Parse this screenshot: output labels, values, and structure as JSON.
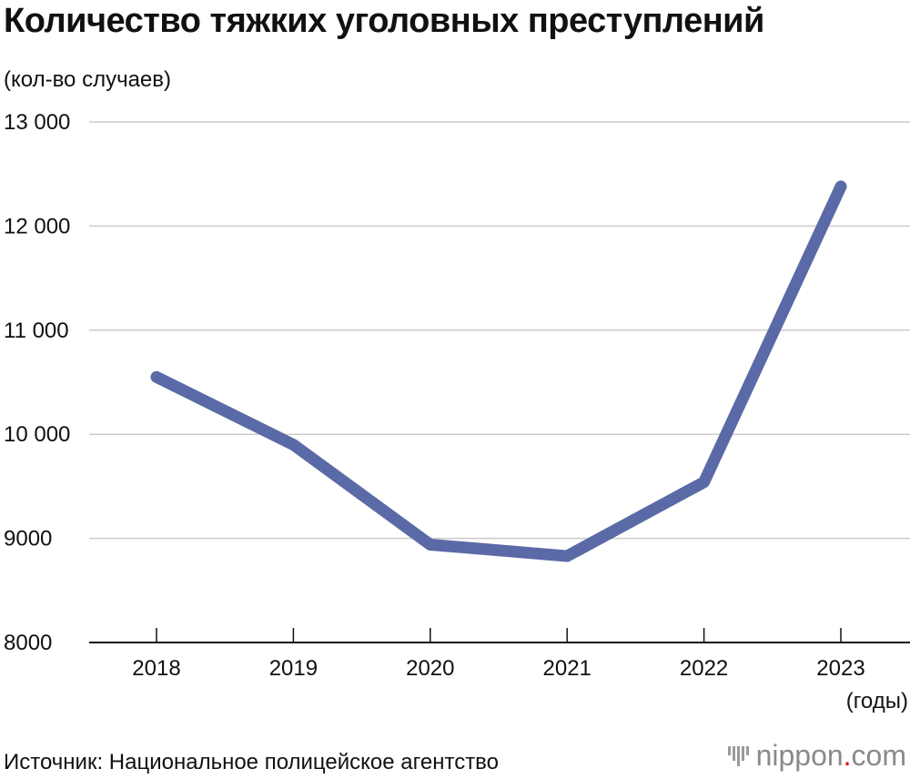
{
  "title": "Количество тяжких уголовных преступлений",
  "unit_label": "(кол-во случаев)",
  "source": "Источник: Национальное полицейское агентство",
  "logo": {
    "name": "nippon",
    "dot": ".",
    "suffix": "com"
  },
  "colors": {
    "line": "#5a6aa6",
    "grid": "#cccccc",
    "axis": "#111111"
  },
  "chart_data": {
    "type": "line",
    "x": [
      "2018",
      "2019",
      "2020",
      "2021",
      "2022",
      "2023"
    ],
    "series": [
      {
        "values": [
          10550,
          9900,
          8940,
          8830,
          9540,
          12380
        ]
      }
    ],
    "xlabel": "(годы)",
    "ylim": [
      8000,
      13000
    ],
    "yticks": [
      8000,
      9000,
      10000,
      11000,
      12000,
      13000
    ],
    "ytick_labels": [
      "8000",
      "9000",
      "10 000",
      "11 000",
      "12 000",
      "13 000"
    ],
    "grid": true,
    "legend": "none"
  }
}
